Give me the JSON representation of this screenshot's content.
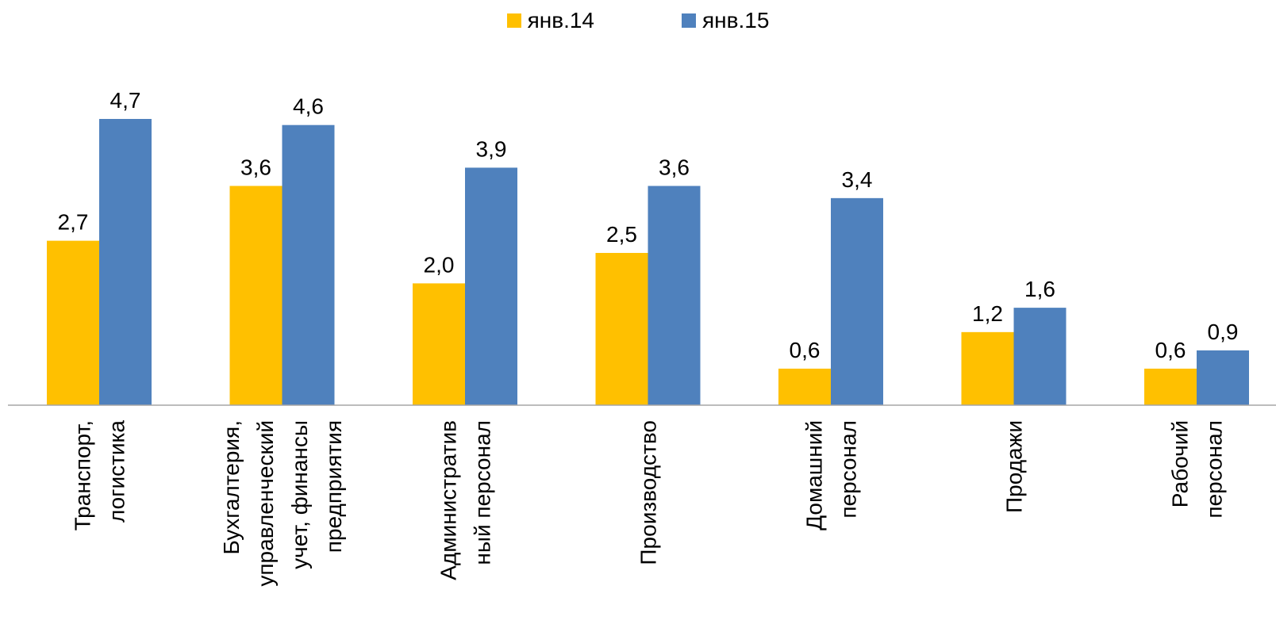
{
  "chart_data": {
    "type": "bar",
    "categories": [
      [
        "Транспорт,",
        "логистика"
      ],
      [
        "Бухгалтерия,",
        "управленческий",
        "учет, финансы",
        "предприятия"
      ],
      [
        "Административ",
        "ный персонал"
      ],
      [
        "Производство"
      ],
      [
        "Домашний",
        "персонал"
      ],
      [
        "Продажи"
      ],
      [
        "Рабочий",
        "персонал"
      ]
    ],
    "series": [
      {
        "name": "янв.14",
        "color": "#FFC000",
        "values": [
          2.7,
          3.6,
          2.0,
          2.5,
          0.6,
          1.2,
          0.6
        ]
      },
      {
        "name": "янв.15",
        "color": "#4F81BD",
        "values": [
          4.7,
          4.6,
          3.9,
          3.6,
          3.4,
          1.6,
          0.9
        ]
      }
    ],
    "value_labels": {
      "янв.14": [
        "2,7",
        "3,6",
        "2,0",
        "2,5",
        "0,6",
        "1,2",
        "0,6"
      ],
      "янв.15": [
        "4,7",
        "4,6",
        "3,9",
        "3,6",
        "3,4",
        "1,6",
        "0,9"
      ]
    },
    "legend_position": "top",
    "grid": false,
    "ylim": [
      0,
      5
    ]
  }
}
